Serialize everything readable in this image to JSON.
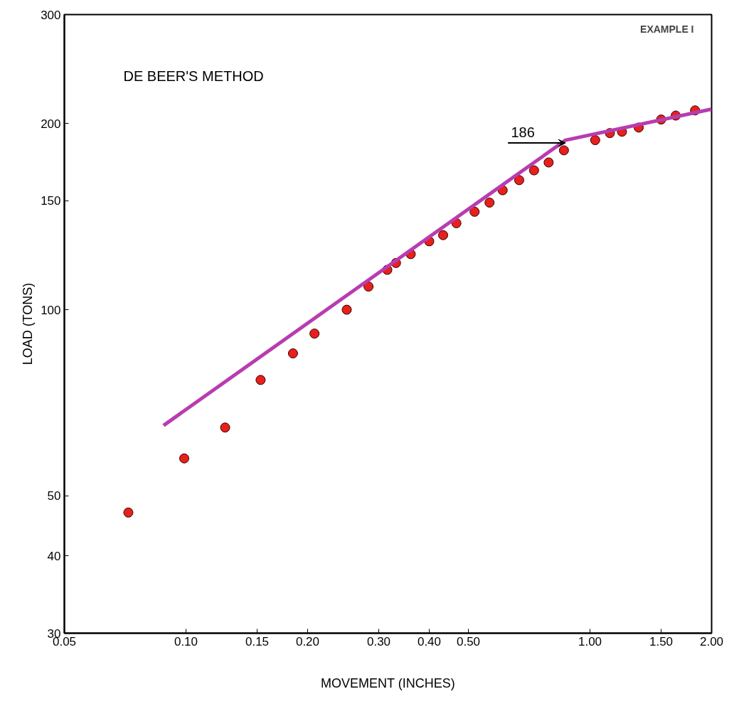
{
  "chart_data": {
    "type": "scatter",
    "title": "DE BEER'S METHOD",
    "xlabel": "MOVEMENT (INCHES)",
    "ylabel": "LOAD (TONS)",
    "log": "xy",
    "grid": false,
    "xlim": [
      0.05,
      2.0
    ],
    "ylim": [
      30,
      300
    ],
    "xticks": [
      {
        "value": 0.05,
        "label": "0.05"
      },
      {
        "value": 0.1,
        "label": "0.10"
      },
      {
        "value": 0.15,
        "label": "0.15"
      },
      {
        "value": 0.2,
        "label": "0.20"
      },
      {
        "value": 0.3,
        "label": "0.30"
      },
      {
        "value": 0.4,
        "label": "0.40"
      },
      {
        "value": 0.5,
        "label": "0.50"
      },
      {
        "value": 1.0,
        "label": "1.00"
      },
      {
        "value": 1.5,
        "label": "1.50"
      },
      {
        "value": 2.0,
        "label": "2.00"
      }
    ],
    "yticks": [
      30,
      40,
      50,
      100,
      150,
      200,
      300
    ],
    "annotations": [
      "EXAMPLE I",
      {
        "text": "186",
        "x": 0.87,
        "y": 186
      }
    ],
    "series": [
      {
        "marker": "circle",
        "color": "#e8201c",
        "x": [
          0.072,
          0.099,
          0.125,
          0.153,
          0.184,
          0.208,
          0.25,
          0.283,
          0.315,
          0.331,
          0.36,
          0.4,
          0.433,
          0.467,
          0.518,
          0.564,
          0.608,
          0.668,
          0.727,
          0.79,
          0.862,
          1.03,
          1.12,
          1.2,
          1.32,
          1.5,
          1.63,
          1.82
        ],
        "values": [
          47,
          57.5,
          64.5,
          77,
          85,
          91.5,
          100,
          109,
          116,
          119,
          123,
          129,
          132,
          138,
          144,
          149,
          156,
          162,
          168,
          173,
          181,
          188,
          193,
          194,
          197,
          203,
          206,
          210
        ]
      },
      {
        "type": "line",
        "marker": "none",
        "line_style": "solid",
        "color": "#b83cb0",
        "x": [
          0.088,
          0.87,
          2.0
        ],
        "values": [
          65,
          188,
          211
        ]
      }
    ]
  }
}
